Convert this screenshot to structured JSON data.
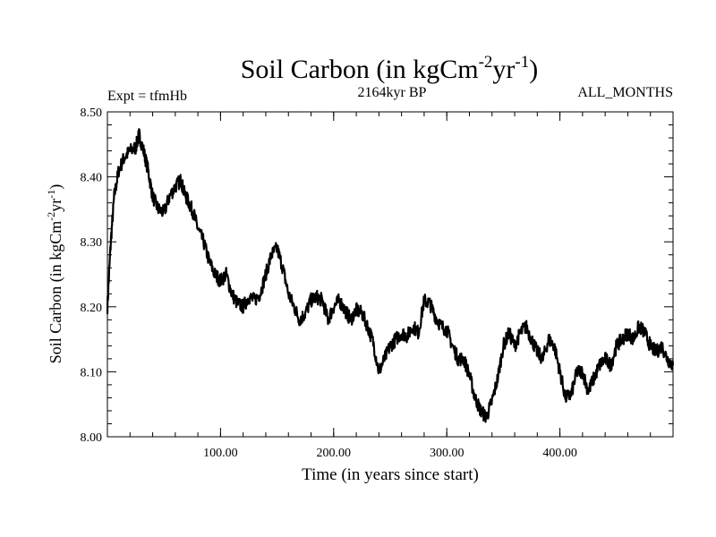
{
  "chart_data": {
    "type": "line",
    "title": "Soil Carbon (in kgCm",
    "title_sup1": "-2",
    "title_mid": "yr",
    "title_sup2": "-1",
    "title_end": ")",
    "subtitle_left": "Expt = tfmHb",
    "subtitle_center": "2164kyr BP",
    "subtitle_right": "ALL_MONTHS",
    "xlabel": "Time (in years since start)",
    "ylabel": "Soil Carbon (in kgCm",
    "ylabel_sup1": "-2",
    "ylabel_mid": "yr",
    "ylabel_sup2": "-1",
    "ylabel_end": ")",
    "xlim": [
      0,
      500
    ],
    "ylim": [
      8.0,
      8.5
    ],
    "xticks": [
      100,
      200,
      300,
      400
    ],
    "xtick_labels": [
      "100.00",
      "200.00",
      "300.00",
      "400.00"
    ],
    "yticks": [
      8.0,
      8.1,
      8.2,
      8.3,
      8.4,
      8.5
    ],
    "ytick_labels": [
      "8.00",
      "8.10",
      "8.20",
      "8.30",
      "8.40",
      "8.50"
    ],
    "grid": false,
    "series": [
      {
        "name": "Soil Carbon",
        "color": "#000000",
        "x": [
          0,
          3,
          6,
          10,
          15,
          20,
          25,
          28,
          32,
          36,
          40,
          45,
          50,
          55,
          60,
          65,
          68,
          72,
          76,
          80,
          85,
          90,
          95,
          100,
          105,
          110,
          115,
          120,
          125,
          130,
          135,
          140,
          145,
          150,
          155,
          160,
          165,
          170,
          175,
          180,
          185,
          190,
          195,
          200,
          205,
          210,
          215,
          220,
          225,
          230,
          235,
          240,
          245,
          250,
          255,
          260,
          265,
          270,
          275,
          280,
          285,
          290,
          295,
          300,
          305,
          310,
          315,
          320,
          325,
          330,
          335,
          340,
          345,
          350,
          355,
          360,
          365,
          370,
          375,
          380,
          385,
          390,
          395,
          400,
          405,
          410,
          415,
          420,
          425,
          430,
          435,
          440,
          445,
          450,
          455,
          460,
          465,
          470,
          475,
          480,
          485,
          490,
          495,
          500
        ],
        "y": [
          8.2,
          8.3,
          8.37,
          8.41,
          8.43,
          8.44,
          8.445,
          8.465,
          8.44,
          8.41,
          8.37,
          8.35,
          8.345,
          8.37,
          8.385,
          8.395,
          8.375,
          8.36,
          8.345,
          8.32,
          8.3,
          8.27,
          8.25,
          8.24,
          8.25,
          8.22,
          8.205,
          8.2,
          8.215,
          8.21,
          8.22,
          8.25,
          8.28,
          8.29,
          8.26,
          8.22,
          8.2,
          8.18,
          8.19,
          8.21,
          8.215,
          8.21,
          8.18,
          8.2,
          8.21,
          8.195,
          8.18,
          8.195,
          8.19,
          8.17,
          8.145,
          8.1,
          8.12,
          8.14,
          8.15,
          8.16,
          8.155,
          8.17,
          8.16,
          8.21,
          8.205,
          8.185,
          8.17,
          8.165,
          8.14,
          8.12,
          8.12,
          8.095,
          8.06,
          8.04,
          8.03,
          8.055,
          8.09,
          8.14,
          8.16,
          8.14,
          8.16,
          8.17,
          8.15,
          8.13,
          8.12,
          8.15,
          8.14,
          8.1,
          8.06,
          8.065,
          8.1,
          8.1,
          8.07,
          8.09,
          8.11,
          8.12,
          8.11,
          8.14,
          8.15,
          8.16,
          8.15,
          8.17,
          8.16,
          8.14,
          8.13,
          8.14,
          8.12,
          8.11
        ]
      }
    ]
  }
}
